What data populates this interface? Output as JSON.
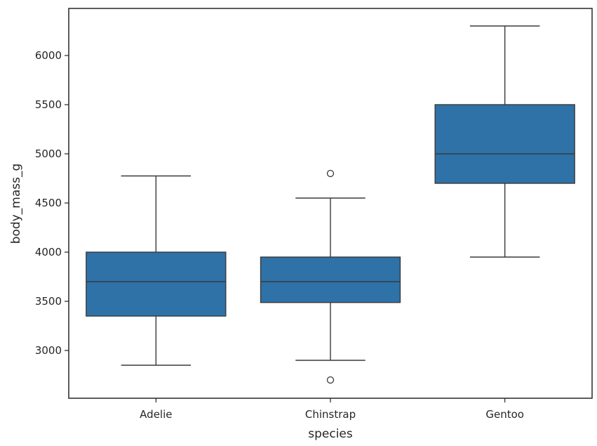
{
  "chart_data": {
    "type": "box",
    "xlabel": "species",
    "ylabel": "body_mass_g",
    "categories": [
      "Adelie",
      "Chinstrap",
      "Gentoo"
    ],
    "yticks": [
      3000,
      3500,
      4000,
      4500,
      5000,
      5500,
      6000
    ],
    "ylim": [
      2500,
      6400
    ],
    "color": "#2e72a8",
    "boxes": [
      {
        "category": "Adelie",
        "whisker_low": 2850,
        "q1": 3350,
        "median": 3700,
        "q3": 4000,
        "whisker_high": 4775,
        "outliers": []
      },
      {
        "category": "Chinstrap",
        "whisker_low": 2900,
        "q1": 3488,
        "median": 3700,
        "q3": 3950,
        "whisker_high": 4550,
        "outliers": [
          2700,
          4800
        ]
      },
      {
        "category": "Gentoo",
        "whisker_low": 3950,
        "q1": 4700,
        "median": 5000,
        "q3": 5500,
        "whisker_high": 6300,
        "outliers": []
      }
    ]
  }
}
